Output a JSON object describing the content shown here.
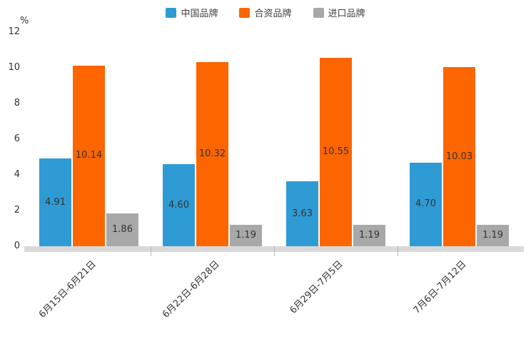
{
  "chart_data": {
    "type": "bar",
    "title": "",
    "unit_label": "%",
    "categories": [
      "6月15日-6月21日",
      "6月22日-6月28日",
      "6月29日-7月5日",
      "7月6日-7月12日"
    ],
    "series": [
      {
        "name": "中国品牌",
        "color": "#2f9bd5",
        "values": [
          4.91,
          4.6,
          3.63,
          4.7
        ]
      },
      {
        "name": "合资品牌",
        "color": "#fc6500",
        "values": [
          10.14,
          10.32,
          10.55,
          10.03
        ]
      },
      {
        "name": "进口品牌",
        "color": "#a8a8a8",
        "values": [
          1.86,
          1.19,
          1.19,
          1.19
        ]
      }
    ],
    "value_label_decimals": 2,
    "ylim": [
      0,
      12
    ],
    "yticks": [
      0,
      2,
      4,
      6,
      8,
      10,
      12
    ],
    "grid": false,
    "legend_position": "top"
  }
}
